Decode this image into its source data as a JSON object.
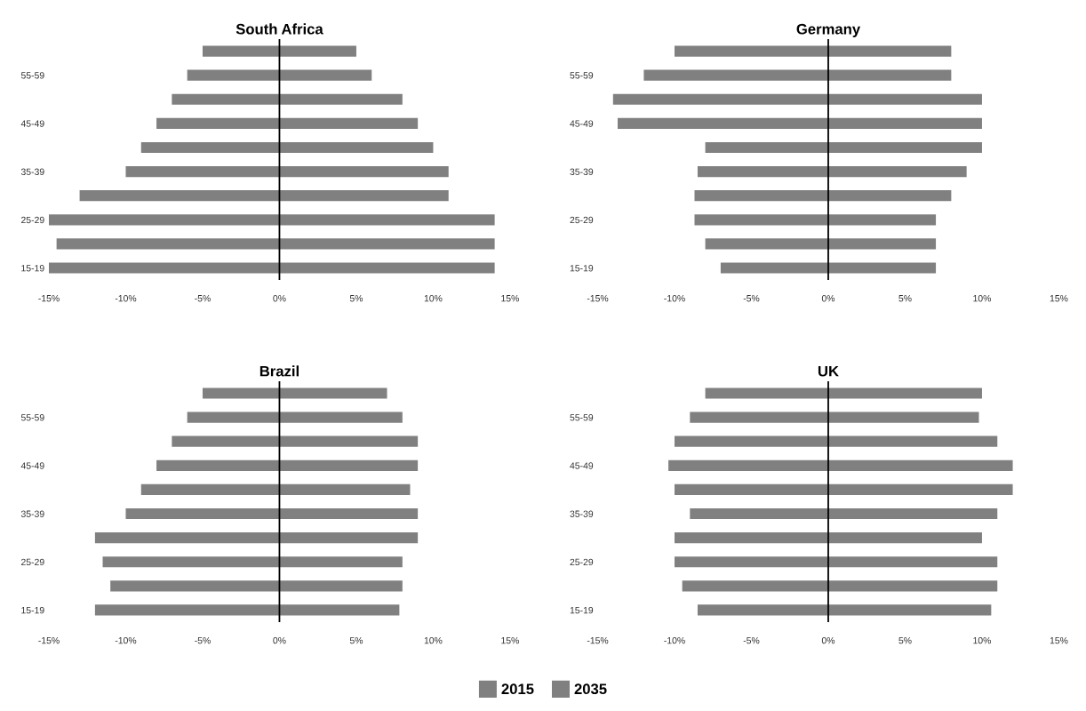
{
  "chart_data": [
    {
      "type": "bar",
      "title": "South Africa",
      "orientation": "horizontal",
      "stacked": true,
      "categories": [
        null,
        "55-59",
        null,
        "45-49",
        null,
        "35-39",
        null,
        "25-29",
        null,
        "15-19"
      ],
      "xlim": [
        -15,
        15
      ],
      "xticks": [
        {
          "value": -15,
          "label": "-15%"
        },
        {
          "value": -10,
          "label": "-10%"
        },
        {
          "value": -5,
          "label": "-5%"
        },
        {
          "value": 0,
          "label": "0%"
        },
        {
          "value": 5,
          "label": "5%"
        },
        {
          "value": 10,
          "label": "10%"
        },
        {
          "value": 15,
          "label": "15%"
        }
      ],
      "grid": false,
      "legend": "bottom",
      "ref_lines": [
        {
          "axis": "x",
          "value": 0,
          "color": "#000000"
        }
      ],
      "series": [
        {
          "name": "2015",
          "color": "#808080",
          "values": [
            -5,
            -6,
            -7,
            -8,
            -9,
            -10,
            -13,
            -15,
            -14.5,
            -15
          ]
        },
        {
          "name": "2035",
          "color": "#808080",
          "values": [
            5,
            6,
            8,
            9,
            10,
            11,
            11,
            14,
            14,
            14
          ]
        }
      ]
    },
    {
      "type": "bar",
      "title": "Germany",
      "orientation": "horizontal",
      "stacked": true,
      "categories": [
        null,
        "55-59",
        null,
        "45-49",
        null,
        "35-39",
        null,
        "25-29",
        null,
        "15-19"
      ],
      "xlim": [
        -15,
        15
      ],
      "xticks": [
        {
          "value": -15,
          "label": "-15%"
        },
        {
          "value": -10,
          "label": "-10%"
        },
        {
          "value": -5,
          "label": "-5%"
        },
        {
          "value": 0,
          "label": "0%"
        },
        {
          "value": 5,
          "label": "5%"
        },
        {
          "value": 10,
          "label": "10%"
        },
        {
          "value": 15,
          "label": "15%"
        }
      ],
      "grid": false,
      "legend": "bottom",
      "ref_lines": [
        {
          "axis": "x",
          "value": 0,
          "color": "#000000"
        }
      ],
      "series": [
        {
          "name": "2015",
          "color": "#808080",
          "values": [
            -10,
            -12,
            -14,
            -13.7,
            -8,
            -8.5,
            -8.7,
            -8.7,
            -8,
            -7
          ]
        },
        {
          "name": "2035",
          "color": "#808080",
          "values": [
            8,
            8,
            10,
            10,
            10,
            9,
            8,
            7,
            7,
            7
          ]
        }
      ]
    },
    {
      "type": "bar",
      "title": "Brazil",
      "orientation": "horizontal",
      "stacked": true,
      "categories": [
        null,
        "55-59",
        null,
        "45-49",
        null,
        "35-39",
        null,
        "25-29",
        null,
        "15-19"
      ],
      "xlim": [
        -15,
        15
      ],
      "xticks": [
        {
          "value": -15,
          "label": "-15%"
        },
        {
          "value": -10,
          "label": "-10%"
        },
        {
          "value": -5,
          "label": "-5%"
        },
        {
          "value": 0,
          "label": "0%"
        },
        {
          "value": 5,
          "label": "5%"
        },
        {
          "value": 10,
          "label": "10%"
        },
        {
          "value": 15,
          "label": "15%"
        }
      ],
      "grid": false,
      "legend": "bottom",
      "ref_lines": [
        {
          "axis": "x",
          "value": 0,
          "color": "#000000"
        }
      ],
      "series": [
        {
          "name": "2015",
          "color": "#808080",
          "values": [
            -5,
            -6,
            -7,
            -8,
            -9,
            -10,
            -12,
            -11.5,
            -11,
            -12
          ]
        },
        {
          "name": "2035",
          "color": "#808080",
          "values": [
            7,
            8,
            9,
            9,
            8.5,
            9,
            9,
            8,
            8,
            7.8
          ]
        }
      ]
    },
    {
      "type": "bar",
      "title": "UK",
      "orientation": "horizontal",
      "stacked": true,
      "categories": [
        null,
        "55-59",
        null,
        "45-49",
        null,
        "35-39",
        null,
        "25-29",
        null,
        "15-19"
      ],
      "xlim": [
        -15,
        15
      ],
      "xticks": [
        {
          "value": -15,
          "label": "-15%"
        },
        {
          "value": -10,
          "label": "-10%"
        },
        {
          "value": -5,
          "label": "-5%"
        },
        {
          "value": 0,
          "label": "0%"
        },
        {
          "value": 5,
          "label": "5%"
        },
        {
          "value": 10,
          "label": "10%"
        },
        {
          "value": 15,
          "label": "15%"
        }
      ],
      "grid": false,
      "legend": "bottom",
      "ref_lines": [
        {
          "axis": "x",
          "value": 0,
          "color": "#000000"
        }
      ],
      "series": [
        {
          "name": "2015",
          "color": "#808080",
          "values": [
            -8,
            -9,
            -10,
            -10.4,
            -10,
            -9,
            -10,
            -10,
            -9.5,
            -8.5
          ]
        },
        {
          "name": "2035",
          "color": "#808080",
          "values": [
            10,
            9.8,
            11,
            12,
            12,
            11,
            10,
            11,
            11,
            10.6
          ]
        }
      ]
    }
  ]
}
